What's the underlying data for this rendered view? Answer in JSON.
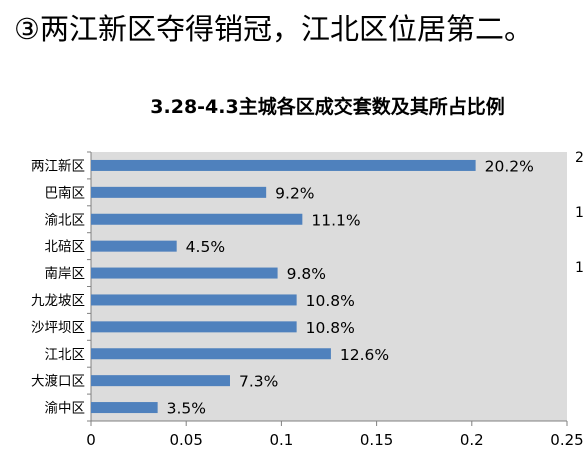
{
  "headline": "③两江新区夺得销冠，江北区位居第二。",
  "edge_digits": [
    "2",
    "1",
    "1"
  ],
  "chart_data": {
    "type": "bar",
    "orientation": "horizontal",
    "title": "3.28-4.3主城各区成交套数及其所占比例",
    "categories": [
      "两江新区",
      "巴南区",
      "渝北区",
      "北碚区",
      "南岸区",
      "九龙坡区",
      "沙坪坝区",
      "江北区",
      "大渡口区",
      "渝中区"
    ],
    "values": [
      0.202,
      0.092,
      0.111,
      0.045,
      0.098,
      0.108,
      0.108,
      0.126,
      0.073,
      0.035
    ],
    "data_labels": [
      "20.2%",
      "9.2%",
      "11.1%",
      "4.5%",
      "9.8%",
      "10.8%",
      "10.8%",
      "12.6%",
      "7.3%",
      "3.5%"
    ],
    "xlim": [
      0,
      0.25
    ],
    "x_ticks": [
      "0",
      "0.05",
      "0.1",
      "0.15",
      "0.2",
      "0.25"
    ],
    "xlabel": "",
    "ylabel": "",
    "grid": false,
    "legend": "none",
    "colors": {
      "bar": "#4F81BD",
      "plot_bg": "#DCDCDC",
      "axis": "#808080"
    }
  }
}
